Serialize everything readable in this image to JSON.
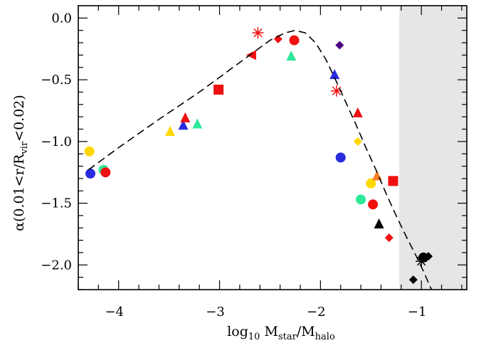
{
  "chart_data": {
    "type": "scatter",
    "xlabel": {
      "base": "log",
      "base_sub": "10",
      "a": " M",
      "a_sub": "star",
      "sep": "/M",
      "b_sub": "halo"
    },
    "ylabel": {
      "pre": "α(0.01<r/R",
      "sub": "vir",
      "post": "<0.02)"
    },
    "xlim": [
      -4.4,
      -0.55
    ],
    "ylim": [
      -2.2,
      0.1
    ],
    "xticks": [
      -4,
      -3,
      -2,
      -1
    ],
    "xtick_labels": [
      "−4",
      "−3",
      "−2",
      "−1"
    ],
    "yticks": [
      0.0,
      -0.5,
      -1.0,
      -1.5,
      -2.0
    ],
    "ytick_labels": [
      "0.0",
      "−0.5",
      "−1.0",
      "−1.5",
      "−2.0"
    ],
    "grid": false,
    "shaded_region": {
      "x_from": -1.22,
      "x_to": -0.55,
      "color": "#e6e6e6"
    },
    "fit_curve": {
      "style": "dashed",
      "color": "#000000",
      "points": [
        [
          -4.3,
          -1.23
        ],
        [
          -4.0,
          -1.05
        ],
        [
          -3.6,
          -0.82
        ],
        [
          -3.2,
          -0.6
        ],
        [
          -2.9,
          -0.42
        ],
        [
          -2.7,
          -0.3
        ],
        [
          -2.5,
          -0.18
        ],
        [
          -2.35,
          -0.12
        ],
        [
          -2.25,
          -0.1
        ],
        [
          -2.15,
          -0.12
        ],
        [
          -2.05,
          -0.2
        ],
        [
          -1.95,
          -0.33
        ],
        [
          -1.85,
          -0.5
        ],
        [
          -1.75,
          -0.68
        ],
        [
          -1.65,
          -0.86
        ],
        [
          -1.55,
          -1.05
        ],
        [
          -1.45,
          -1.23
        ],
        [
          -1.35,
          -1.42
        ],
        [
          -1.25,
          -1.6
        ],
        [
          -1.15,
          -1.77
        ],
        [
          -1.05,
          -1.93
        ],
        [
          -0.98,
          -2.05
        ],
        [
          -0.9,
          -2.2
        ]
      ]
    },
    "points": [
      {
        "x": -4.29,
        "y": -1.08,
        "marker": "circle",
        "color": "#ffd700"
      },
      {
        "x": -4.28,
        "y": -1.26,
        "marker": "circle",
        "color": "#2a2ae0"
      },
      {
        "x": -4.15,
        "y": -1.23,
        "marker": "circle",
        "color": "#2ee89a"
      },
      {
        "x": -4.13,
        "y": -1.25,
        "marker": "circle",
        "color": "#f01010"
      },
      {
        "x": -3.49,
        "y": -0.92,
        "marker": "triangle",
        "color": "#ffd700"
      },
      {
        "x": -3.36,
        "y": -0.87,
        "marker": "triangle",
        "color": "#2a2ae0"
      },
      {
        "x": -3.34,
        "y": -0.81,
        "marker": "triangle",
        "color": "#f01010"
      },
      {
        "x": -3.22,
        "y": -0.86,
        "marker": "triangle",
        "color": "#2ee89a"
      },
      {
        "x": -3.01,
        "y": -0.58,
        "marker": "square",
        "color": "#f01010"
      },
      {
        "x": -2.68,
        "y": -0.3,
        "marker": "triangle-left",
        "color": "#f01010"
      },
      {
        "x": -2.62,
        "y": -0.12,
        "marker": "asterisk",
        "color": "#f01010"
      },
      {
        "x": -2.42,
        "y": -0.17,
        "marker": "diamond",
        "color": "#f01010"
      },
      {
        "x": -2.29,
        "y": -0.31,
        "marker": "triangle",
        "color": "#2ee89a"
      },
      {
        "x": -2.26,
        "y": -0.18,
        "marker": "circle",
        "color": "#f01010"
      },
      {
        "x": -1.86,
        "y": -0.46,
        "marker": "triangle",
        "color": "#2a2ae0"
      },
      {
        "x": -1.84,
        "y": -0.59,
        "marker": "asterisk",
        "color": "#f01010"
      },
      {
        "x": -1.81,
        "y": -0.22,
        "marker": "diamond",
        "color": "#4b0082"
      },
      {
        "x": -1.8,
        "y": -1.13,
        "marker": "circle",
        "color": "#2a2ae0"
      },
      {
        "x": -1.63,
        "y": -0.77,
        "marker": "triangle",
        "color": "#f01010"
      },
      {
        "x": -1.63,
        "y": -1.0,
        "marker": "diamond",
        "color": "#ffd700"
      },
      {
        "x": -1.6,
        "y": -1.47,
        "marker": "circle",
        "color": "#2ee89a"
      },
      {
        "x": -1.5,
        "y": -1.34,
        "marker": "circle",
        "color": "#ffd700"
      },
      {
        "x": -1.48,
        "y": -1.51,
        "marker": "circle",
        "color": "#f01010"
      },
      {
        "x": -1.44,
        "y": -1.28,
        "marker": "triangle",
        "color": "#ff7f20"
      },
      {
        "x": -1.42,
        "y": -1.67,
        "marker": "triangle",
        "color": "#000000"
      },
      {
        "x": -1.32,
        "y": -1.78,
        "marker": "diamond",
        "color": "#f01010"
      },
      {
        "x": -1.28,
        "y": -1.32,
        "marker": "square",
        "color": "#f01010"
      },
      {
        "x": -1.08,
        "y": -2.12,
        "marker": "diamond",
        "color": "#000000"
      },
      {
        "x": -1.0,
        "y": -1.97,
        "marker": "asterisk",
        "color": "#000000"
      },
      {
        "x": -0.98,
        "y": -1.94,
        "marker": "circle",
        "color": "#000000"
      },
      {
        "x": -0.93,
        "y": -1.93,
        "marker": "diamond",
        "color": "#000000"
      }
    ]
  }
}
